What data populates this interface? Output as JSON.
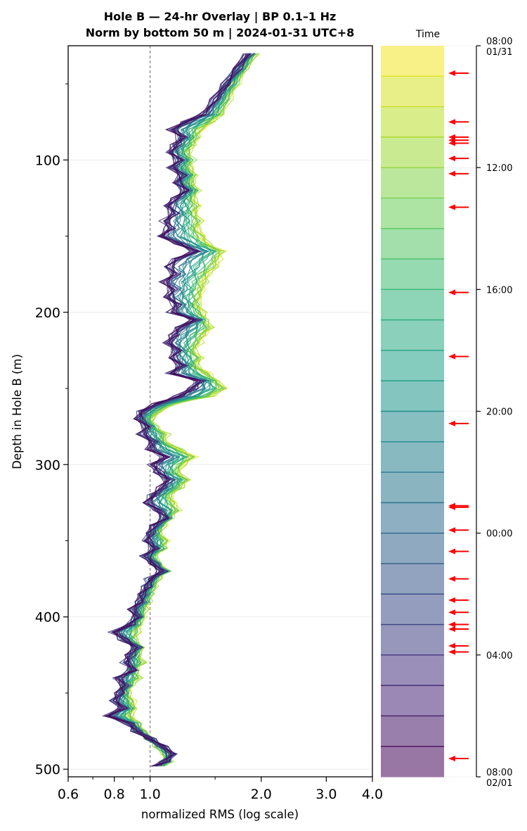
{
  "chart_data": {
    "type": "line",
    "title": "Hole B — 24-hr Overlay  |  BP 0.1–1 Hz",
    "subtitle": "Norm by bottom 50 m  |  2024-01-31 UTC+8",
    "xlabel": "normalized RMS  (log scale)",
    "ylabel": "Depth in Hole B (m)",
    "x_scale": "log",
    "xlim": [
      0.6,
      4.0
    ],
    "ylim": [
      505,
      25
    ],
    "x_ticks": [
      "0.6",
      "0.8",
      "1.0",
      "2.0",
      "3.0",
      "4.0"
    ],
    "x_tick_values": [
      0.6,
      0.8,
      1.0,
      2.0,
      3.0,
      4.0
    ],
    "y_ticks": [
      "100",
      "200",
      "300",
      "400",
      "500"
    ],
    "y_tick_values": [
      100,
      200,
      300,
      400,
      500
    ],
    "reference_line_x": 1.0,
    "grid": "horizontal",
    "colormap": "viridis",
    "colorbar": {
      "label": "Time",
      "tick_labels": [
        "08:00\n01/31",
        "12:00",
        "16:00",
        "20:00",
        "00:00",
        "04:00",
        "08:00\n02/01"
      ],
      "tick_hours": [
        0,
        4,
        8,
        12,
        16,
        20,
        24
      ],
      "band_count": 24,
      "line_hours": [
        1,
        2,
        3,
        4,
        5,
        6,
        7,
        8,
        9,
        10,
        11,
        12,
        13,
        14,
        15,
        16,
        17,
        18,
        19,
        20,
        21,
        22,
        23
      ],
      "arrow_hours": [
        0.9,
        2.5,
        3.0,
        3.1,
        3.2,
        3.7,
        4.2,
        5.3,
        8.1,
        10.2,
        12.4,
        15.1,
        15.15,
        15.9,
        16.6,
        17.5,
        18.2,
        18.6,
        19.0,
        19.15,
        19.7,
        19.9,
        23.4
      ]
    },
    "depth": [
      30,
      40,
      50,
      60,
      70,
      75,
      80,
      85,
      90,
      95,
      100,
      105,
      110,
      115,
      120,
      125,
      130,
      135,
      140,
      145,
      150,
      155,
      160,
      165,
      170,
      175,
      180,
      185,
      190,
      195,
      200,
      205,
      210,
      215,
      220,
      225,
      230,
      235,
      240,
      245,
      250,
      255,
      260,
      265,
      270,
      275,
      280,
      285,
      290,
      295,
      300,
      305,
      310,
      315,
      320,
      325,
      330,
      335,
      340,
      345,
      350,
      355,
      360,
      365,
      370,
      375,
      380,
      385,
      390,
      395,
      400,
      405,
      410,
      415,
      420,
      425,
      430,
      435,
      440,
      445,
      450,
      455,
      460,
      465,
      470,
      475,
      480,
      485,
      490,
      495,
      498
    ],
    "series_early": [
      1.92,
      1.8,
      1.7,
      1.62,
      1.55,
      1.46,
      1.36,
      1.33,
      1.3,
      1.26,
      1.29,
      1.27,
      1.31,
      1.29,
      1.33,
      1.3,
      1.34,
      1.31,
      1.36,
      1.33,
      1.38,
      1.42,
      1.55,
      1.52,
      1.5,
      1.42,
      1.4,
      1.37,
      1.35,
      1.34,
      1.38,
      1.4,
      1.45,
      1.38,
      1.35,
      1.3,
      1.36,
      1.32,
      1.42,
      1.5,
      1.58,
      1.45,
      1.15,
      1.05,
      1.0,
      1.02,
      1.1,
      1.08,
      1.2,
      1.3,
      1.22,
      1.18,
      1.25,
      1.2,
      1.12,
      1.15,
      1.18,
      1.12,
      1.08,
      1.05,
      1.1,
      1.08,
      1.02,
      1.05,
      1.1,
      1.04,
      1.02,
      1.0,
      0.98,
      0.96,
      0.95,
      0.93,
      0.92,
      0.9,
      0.94,
      0.92,
      0.95,
      0.9,
      0.93,
      0.88,
      0.86,
      0.89,
      0.9,
      0.88,
      0.92,
      0.95,
      1.0,
      1.05,
      1.1,
      1.12,
      1.08
    ],
    "series_late": [
      1.85,
      1.72,
      1.6,
      1.5,
      1.4,
      1.25,
      1.15,
      1.22,
      1.17,
      1.14,
      1.2,
      1.15,
      1.22,
      1.18,
      1.25,
      1.18,
      1.12,
      1.16,
      1.1,
      1.13,
      1.08,
      1.2,
      1.33,
      1.18,
      1.12,
      1.17,
      1.1,
      1.15,
      1.12,
      1.18,
      1.15,
      1.33,
      1.2,
      1.16,
      1.12,
      1.18,
      1.15,
      1.22,
      1.14,
      1.36,
      1.3,
      1.2,
      1.05,
      0.95,
      0.93,
      0.98,
      0.95,
      1.02,
      1.0,
      1.1,
      1.02,
      1.05,
      1.12,
      1.08,
      1.02,
      0.98,
      1.05,
      1.1,
      1.03,
      1.0,
      0.98,
      1.03,
      0.97,
      1.02,
      1.08,
      1.0,
      0.98,
      0.95,
      0.94,
      0.9,
      0.92,
      0.88,
      0.8,
      0.85,
      0.92,
      0.88,
      0.86,
      0.9,
      0.82,
      0.85,
      0.83,
      0.8,
      0.84,
      0.77,
      0.88,
      0.92,
      1.0,
      1.08,
      1.15,
      1.1,
      1.03
    ]
  }
}
